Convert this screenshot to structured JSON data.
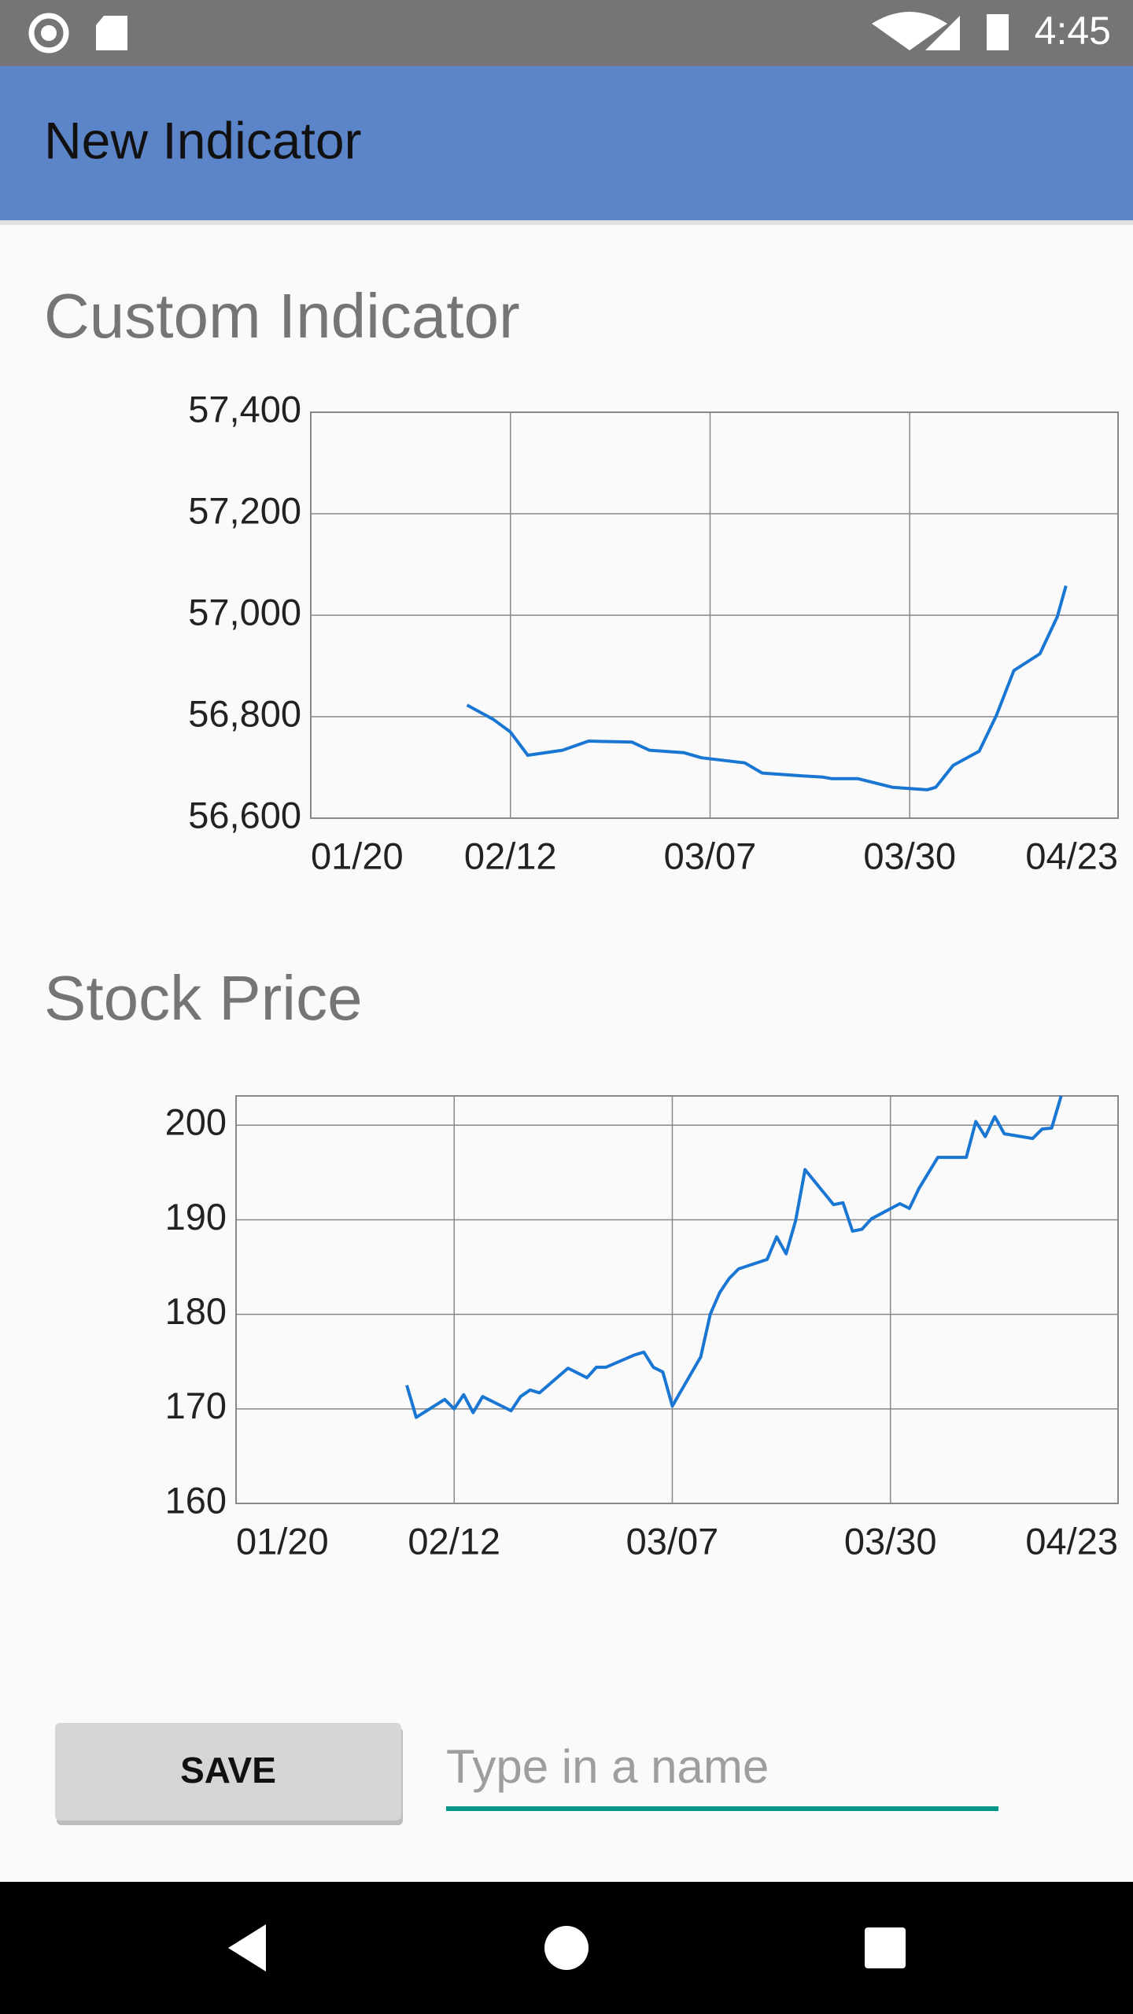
{
  "status_bar": {
    "time": "4:45"
  },
  "app_bar": {
    "title": "New Indicator"
  },
  "chart_data": [
    {
      "type": "line",
      "title": "Custom Indicator",
      "color": "#1976d2",
      "grid": true,
      "x": [
        "02/07",
        "02/10",
        "02/12",
        "02/14",
        "02/18",
        "02/21",
        "02/26",
        "02/28",
        "03/04",
        "03/06",
        "03/11",
        "03/13",
        "03/17",
        "03/20",
        "03/21",
        "03/24",
        "03/28",
        "04/01",
        "04/02",
        "04/04",
        "04/07",
        "04/09",
        "04/11",
        "04/14",
        "04/16",
        "04/17"
      ],
      "values": [
        56823,
        56795,
        56770,
        56724,
        56734,
        56752,
        56750,
        56734,
        56729,
        56719,
        56709,
        56689,
        56684,
        56681,
        56678,
        56678,
        56661,
        56656,
        56661,
        56704,
        56732,
        56803,
        56891,
        56924,
        56997,
        57058
      ],
      "xlim": [
        "01/20",
        "04/23"
      ],
      "xticks": [
        "01/20",
        "02/12",
        "03/07",
        "03/30",
        "04/23"
      ],
      "ylim": [
        56600,
        57400
      ],
      "yticks": [
        {
          "value": 56600,
          "label": "56,600"
        },
        {
          "value": 56800,
          "label": "56,800"
        },
        {
          "value": 57000,
          "label": "57,000"
        },
        {
          "value": 57200,
          "label": "57,200"
        },
        {
          "value": 57400,
          "label": "57,400"
        }
      ]
    },
    {
      "type": "line",
      "title": "Stock Price",
      "color": "#1976d2",
      "grid": true,
      "x": [
        "02/07",
        "02/08",
        "02/11",
        "02/12",
        "02/13",
        "02/14",
        "02/15",
        "02/18",
        "02/19",
        "02/20",
        "02/21",
        "02/24",
        "02/26",
        "02/27",
        "02/28",
        "03/03",
        "03/04",
        "03/05",
        "03/06",
        "03/07",
        "03/10",
        "03/11",
        "03/12",
        "03/13",
        "03/14",
        "03/17",
        "03/18",
        "03/19",
        "03/20",
        "03/21",
        "03/24",
        "03/25",
        "03/26",
        "03/27",
        "03/28",
        "03/31",
        "04/01",
        "04/02",
        "04/04",
        "04/07",
        "04/08",
        "04/09",
        "04/10",
        "04/11",
        "04/14",
        "04/15",
        "04/16",
        "04/17"
      ],
      "values": [
        172.5,
        169.1,
        171.0,
        170.0,
        171.5,
        169.6,
        171.3,
        169.8,
        171.3,
        172.0,
        171.7,
        174.3,
        173.3,
        174.4,
        174.4,
        175.7,
        176.0,
        174.4,
        173.9,
        170.3,
        175.5,
        180.0,
        182.3,
        183.8,
        184.8,
        185.8,
        188.2,
        186.4,
        189.9,
        195.3,
        191.6,
        191.8,
        188.8,
        189.0,
        190.1,
        191.7,
        191.2,
        193.3,
        196.6,
        196.6,
        200.4,
        198.8,
        200.9,
        199.1,
        198.6,
        199.6,
        199.7,
        203.1
      ],
      "xlim": [
        "01/20",
        "04/23"
      ],
      "xticks": [
        "01/20",
        "02/12",
        "03/07",
        "03/30",
        "04/23"
      ],
      "ylim": [
        160,
        203.1
      ],
      "yticks": [
        160,
        170,
        180,
        190,
        200
      ]
    }
  ],
  "form": {
    "button": "SAVE",
    "placeholder": "Type in a name"
  }
}
